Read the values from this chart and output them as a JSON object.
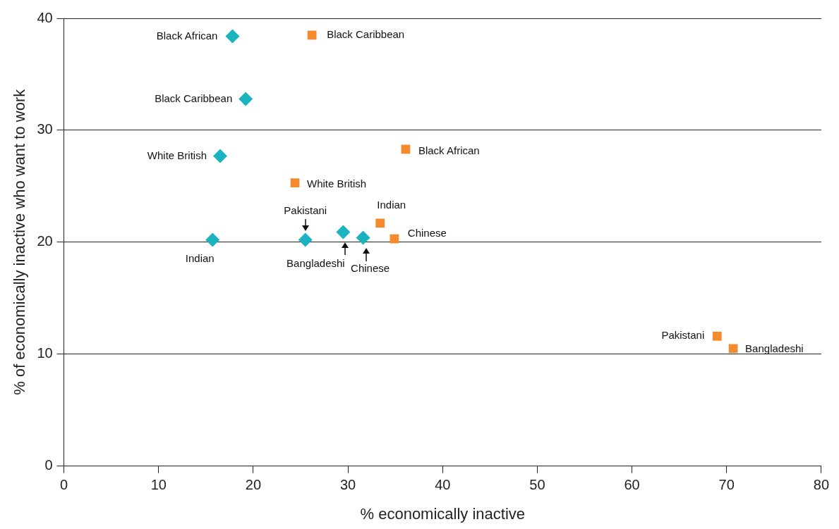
{
  "chart_data": {
    "type": "scatter",
    "xlabel": "% economically inactive",
    "ylabel": "% of economically inactive who want to work",
    "xlim": [
      0,
      80
    ],
    "xticks": [
      0,
      10,
      20,
      30,
      40,
      50,
      60,
      70,
      80
    ],
    "ylim": [
      0,
      40
    ],
    "yticks": [
      0,
      10,
      20,
      30,
      40
    ],
    "grid": "y",
    "legend": false,
    "series": [
      {
        "color": "#1bb3bf",
        "marker": "diamond",
        "x": [
          17.8,
          19.2,
          16.5,
          15.7,
          25.5,
          29.5,
          31.6
        ],
        "values": [
          38.4,
          32.8,
          27.7,
          20.2,
          20.2,
          20.9,
          20.4
        ]
      },
      {
        "color": "#f58a2c",
        "marker": "square",
        "x": [
          26.2,
          36.1,
          24.4,
          33.4,
          34.9,
          69.0,
          70.7
        ],
        "values": [
          38.5,
          28.3,
          25.3,
          21.7,
          20.3,
          11.6,
          10.5
        ]
      }
    ],
    "annotations": [
      {
        "text": "Black African",
        "x": 17.8,
        "y": 38.4
      },
      {
        "text": "Black Caribbean",
        "x": 19.2,
        "y": 32.8
      },
      {
        "text": "White British",
        "x": 16.5,
        "y": 27.7
      },
      {
        "text": "Indian",
        "x": 15.7,
        "y": 20.2
      },
      {
        "text": "Pakistani",
        "x": 25.5,
        "y": 20.2
      },
      {
        "text": "Bangladeshi",
        "x": 29.5,
        "y": 20.9
      },
      {
        "text": "Chinese",
        "x": 31.6,
        "y": 20.4
      },
      {
        "text": "Black Caribbean",
        "x": 26.2,
        "y": 38.5
      },
      {
        "text": "Black African",
        "x": 36.1,
        "y": 28.3
      },
      {
        "text": "White British",
        "x": 24.4,
        "y": 25.3
      },
      {
        "text": "Indian",
        "x": 33.4,
        "y": 21.7
      },
      {
        "text": "Chinese",
        "x": 34.9,
        "y": 20.3
      },
      {
        "text": "Pakistani",
        "x": 69.0,
        "y": 11.6
      },
      {
        "text": "Bangladeshi",
        "x": 70.7,
        "y": 10.5
      }
    ]
  }
}
